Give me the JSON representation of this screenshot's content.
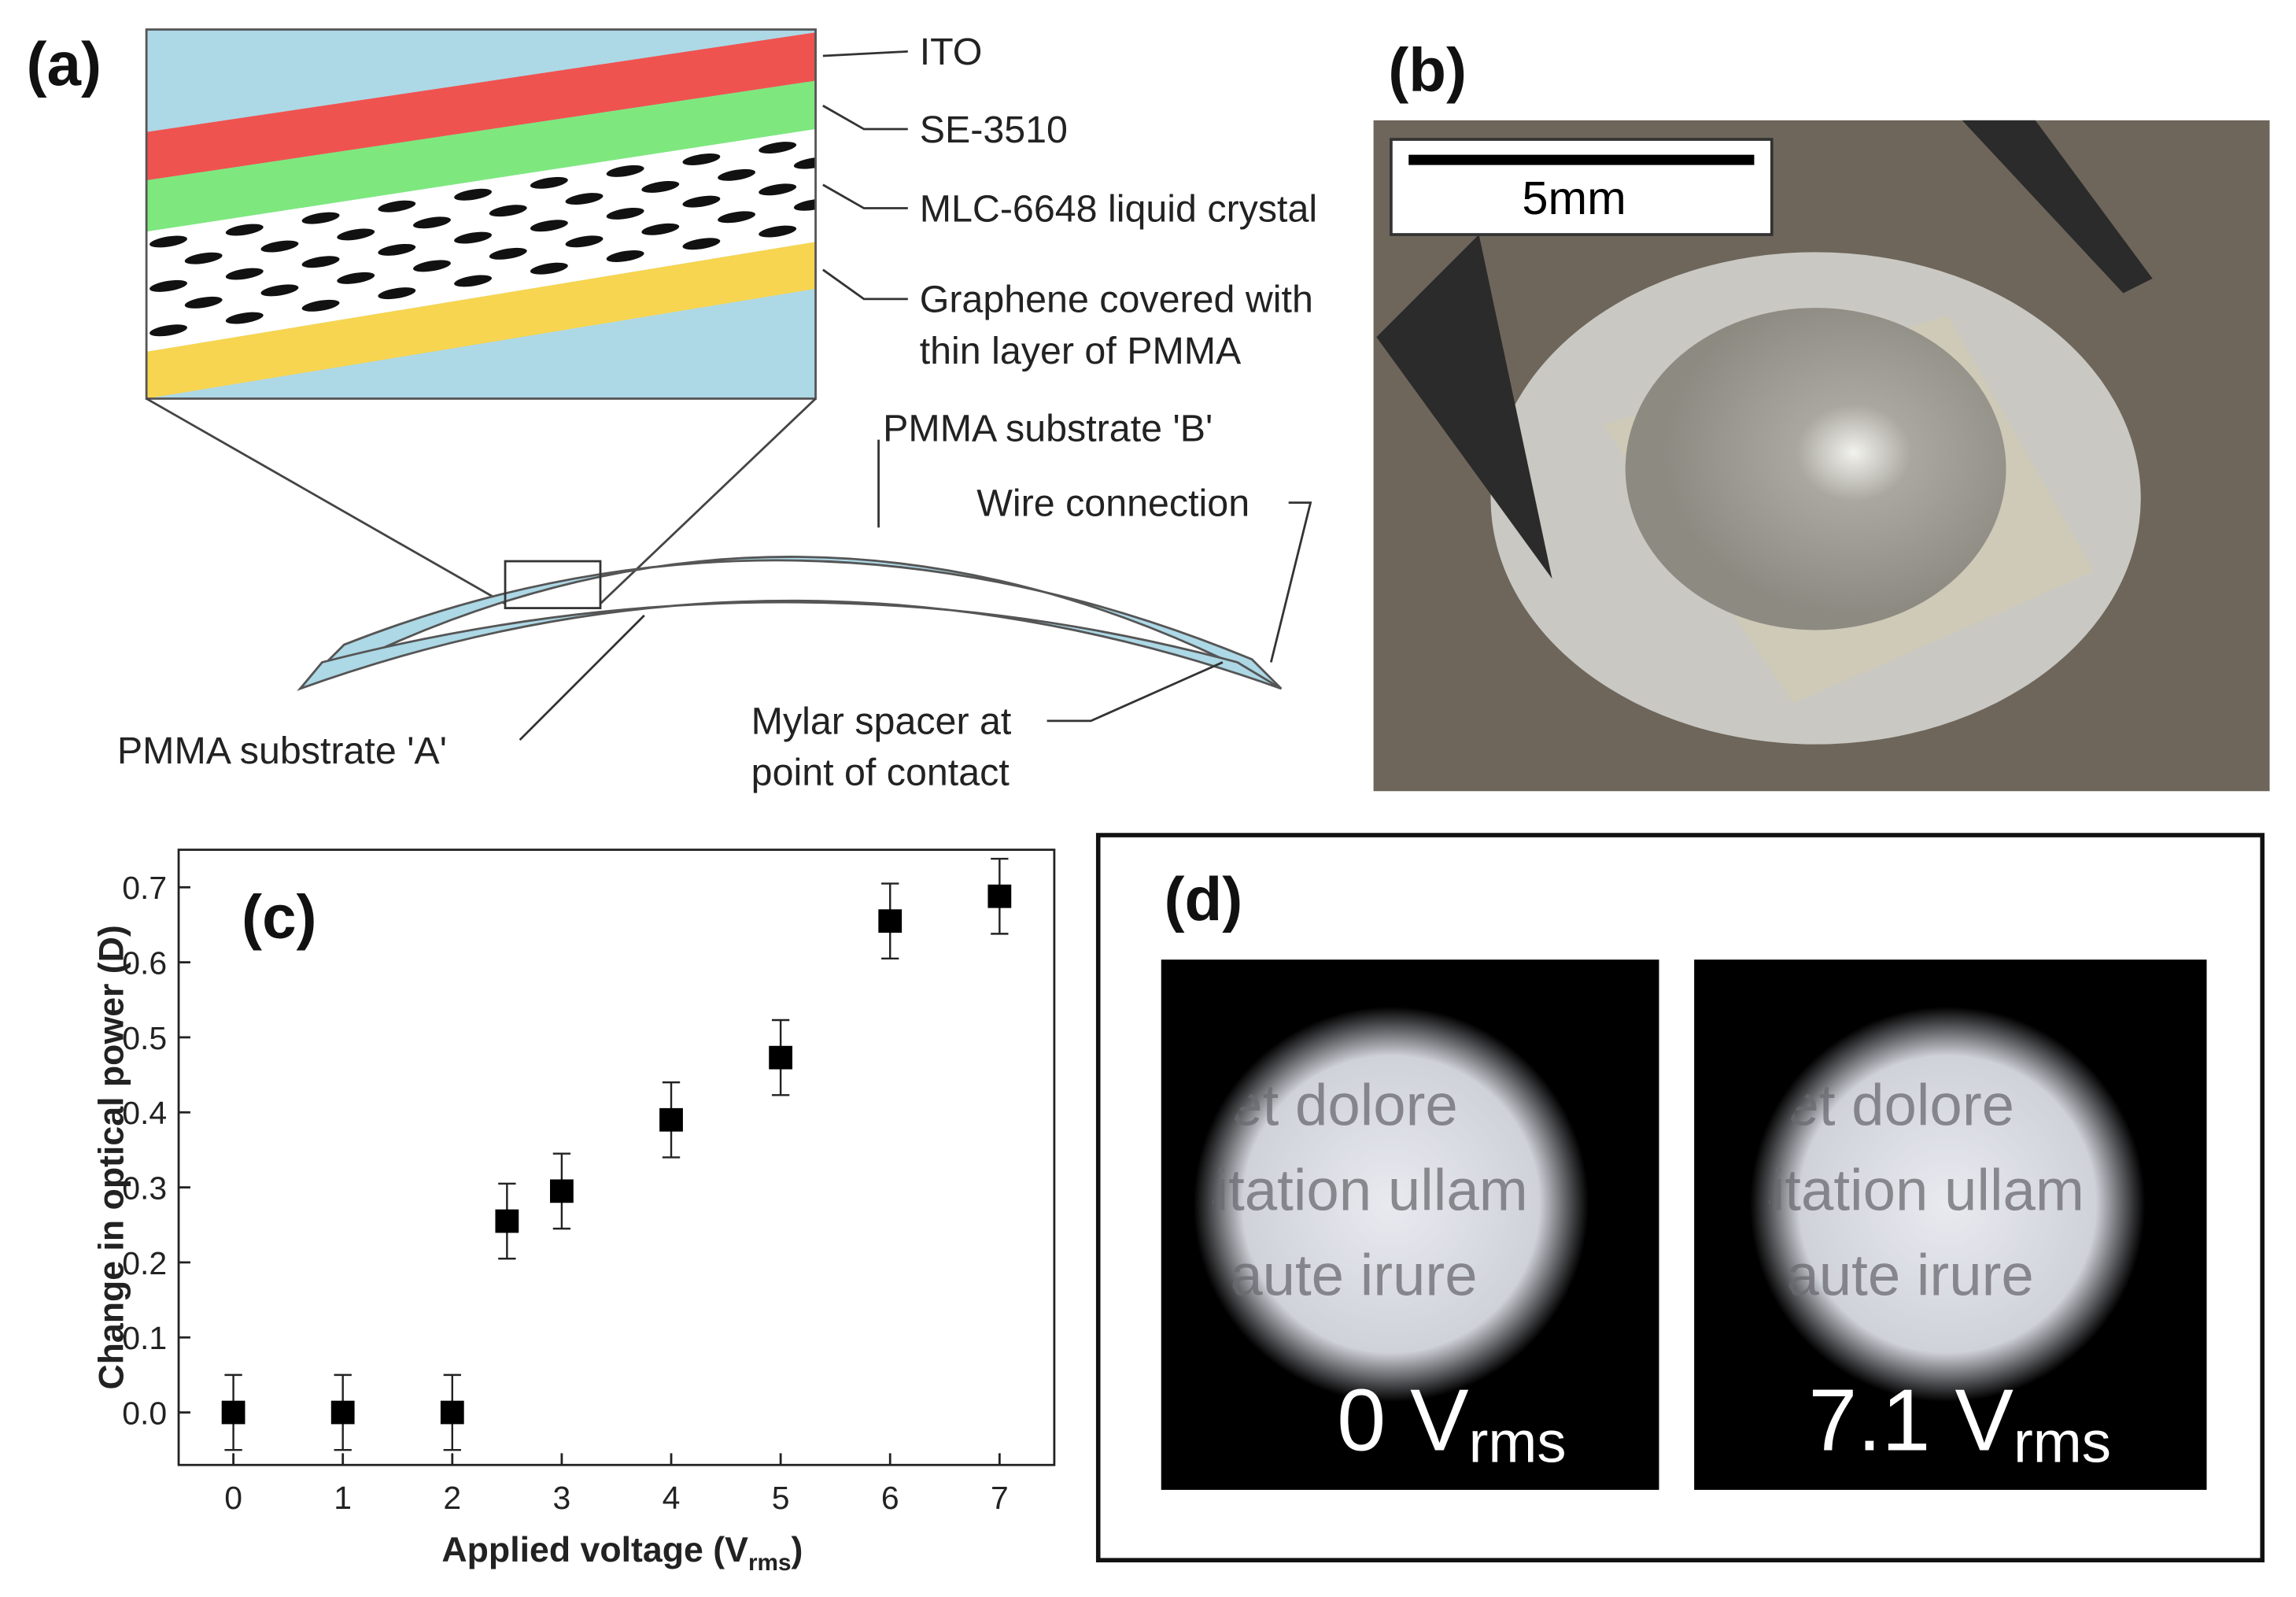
{
  "panel_a": {
    "label": "(a)",
    "ito": "ITO",
    "se": "SE-3510",
    "lc": "MLC-6648 liquid crystal",
    "graphene": [
      "Graphene covered with",
      "thin layer of PMMA"
    ],
    "substrate_b": "PMMA substrate 'B'",
    "wire": "Wire connection",
    "mylar": [
      "Mylar spacer at",
      "point of contact"
    ],
    "substrate_a": "PMMA substrate 'A'"
  },
  "panel_b": {
    "label": "(b)",
    "scale": "5mm"
  },
  "panel_d": {
    "label": "(d)",
    "page_text": [
      "et dolore",
      "citation ullam",
      "aute irure"
    ],
    "images": [
      {
        "voltage": "0 V",
        "unit": "rms"
      },
      {
        "voltage": "7.1 V",
        "unit": "rms"
      }
    ]
  },
  "chart_data": {
    "type": "scatter",
    "panel_label": "(c)",
    "ylabel": "Change in optical power (D)",
    "xlabel": "Applied voltage (V",
    "xlabel_sub": "rms",
    "xlabel_end": ")",
    "x": [
      0,
      1,
      2,
      2.5,
      3,
      4,
      5,
      6,
      7
    ],
    "values": [
      0,
      0,
      0,
      0.255,
      0.295,
      0.39,
      0.473,
      0.655,
      0.688
    ],
    "errors": [
      0.05,
      0.05,
      0.05,
      0.05,
      0.05,
      0.05,
      0.05,
      0.05,
      0.05
    ],
    "color": "#000000",
    "xlim": [
      -0.5,
      7.5
    ],
    "xticks": [
      0,
      1,
      2,
      3,
      4,
      5,
      6,
      7
    ],
    "ylim": [
      -0.07,
      0.75
    ],
    "yticks": [
      {
        "value": 0,
        "label": "0.0"
      },
      0.1,
      0.2,
      0.3,
      0.4,
      0.5,
      0.6,
      0.7
    ]
  }
}
